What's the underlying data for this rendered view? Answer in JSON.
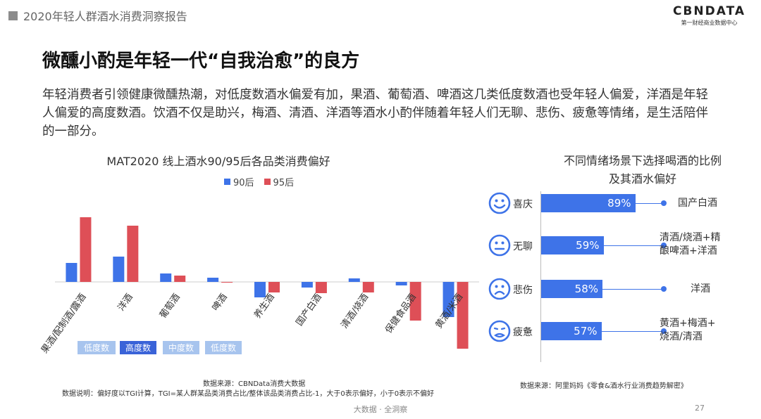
{
  "header": {
    "report_title": "2020年轻人群酒水消费洞察报告",
    "logo_main": "CBNDATA",
    "logo_sub": "第一财经商业数据中心"
  },
  "headline": "微醺小酌是年轻一代“自我治愈”的良方",
  "intro": "年轻消费者引领健康微醺热潮，对低度数酒水偏爱有加，果酒、葡萄酒、啤酒这几类低度数酒也受年轻人偏爱，洋酒是年轻人偏爱的高度数酒。饮酒不仅是助兴，梅酒、清酒、洋酒等酒水小酌伴随着年轻人们无聊、悲伤、疲惫等情绪，是生活陪伴的一部分。",
  "colors": {
    "blue": "#3e73e8",
    "red": "#de4f57",
    "light_blue": "#a7c4ee",
    "dark_blue": "#3a63d8",
    "title_gray": "#8c8c8c"
  },
  "chart_data": [
    {
      "type": "bar",
      "title": "MAT2020 线上酒水90/95后各品类消费偏好",
      "categories": [
        "果酒/配制酒/露酒",
        "洋酒",
        "葡萄酒",
        "啤酒",
        "养生酒",
        "国产白酒",
        "清酒/烧酒",
        "保健食品酒",
        "黄酒/米酒"
      ],
      "series": [
        {
          "name": "90后",
          "values": [
            0.27,
            0.36,
            0.12,
            0.06,
            -0.22,
            -0.08,
            0.05,
            -0.05,
            -0.5
          ]
        },
        {
          "name": "95后",
          "values": [
            0.92,
            0.8,
            0.09,
            -0.01,
            -0.15,
            -0.16,
            -0.15,
            -0.55,
            -0.95
          ]
        }
      ],
      "ylim": [
        -1.0,
        1.0
      ],
      "grid": false,
      "legend": "top-center",
      "badges": [
        "低度数",
        "高度数",
        "中度数",
        "低度数"
      ]
    },
    {
      "type": "bar",
      "title": "不同情绪场景下选择喝酒的比例",
      "subtitle": "及其酒水偏好",
      "categories": [
        "喜庆",
        "无聊",
        "悲伤",
        "疲惫"
      ],
      "values": [
        89,
        59,
        58,
        57
      ],
      "value_labels": [
        "89%",
        "59%",
        "58%",
        "57%"
      ],
      "preferences": [
        [
          "国产白酒"
        ],
        [
          "清酒/烧酒+精",
          "酿啤酒+洋酒"
        ],
        [
          "洋酒"
        ],
        [
          "黄酒+梅酒+",
          "烧酒/清酒"
        ]
      ],
      "icons": [
        "happy-face-icon",
        "neutral-face-icon",
        "sad-face-icon",
        "tired-face-icon"
      ],
      "xlim": [
        0,
        100
      ]
    }
  ],
  "sources": {
    "left_line1": "数据来源：CBNData消费大数据",
    "left_line2": "数据说明：偏好度以TGI计算，TGI=某人群某品类消费占比/整体该品类消费占比-1，大于0表示偏好，小于0表示不偏好",
    "right": "数据来源：阿里妈妈《零食&酒水行业消费趋势解密》"
  },
  "footer": "大数据 · 全洞察",
  "page_number": "27"
}
